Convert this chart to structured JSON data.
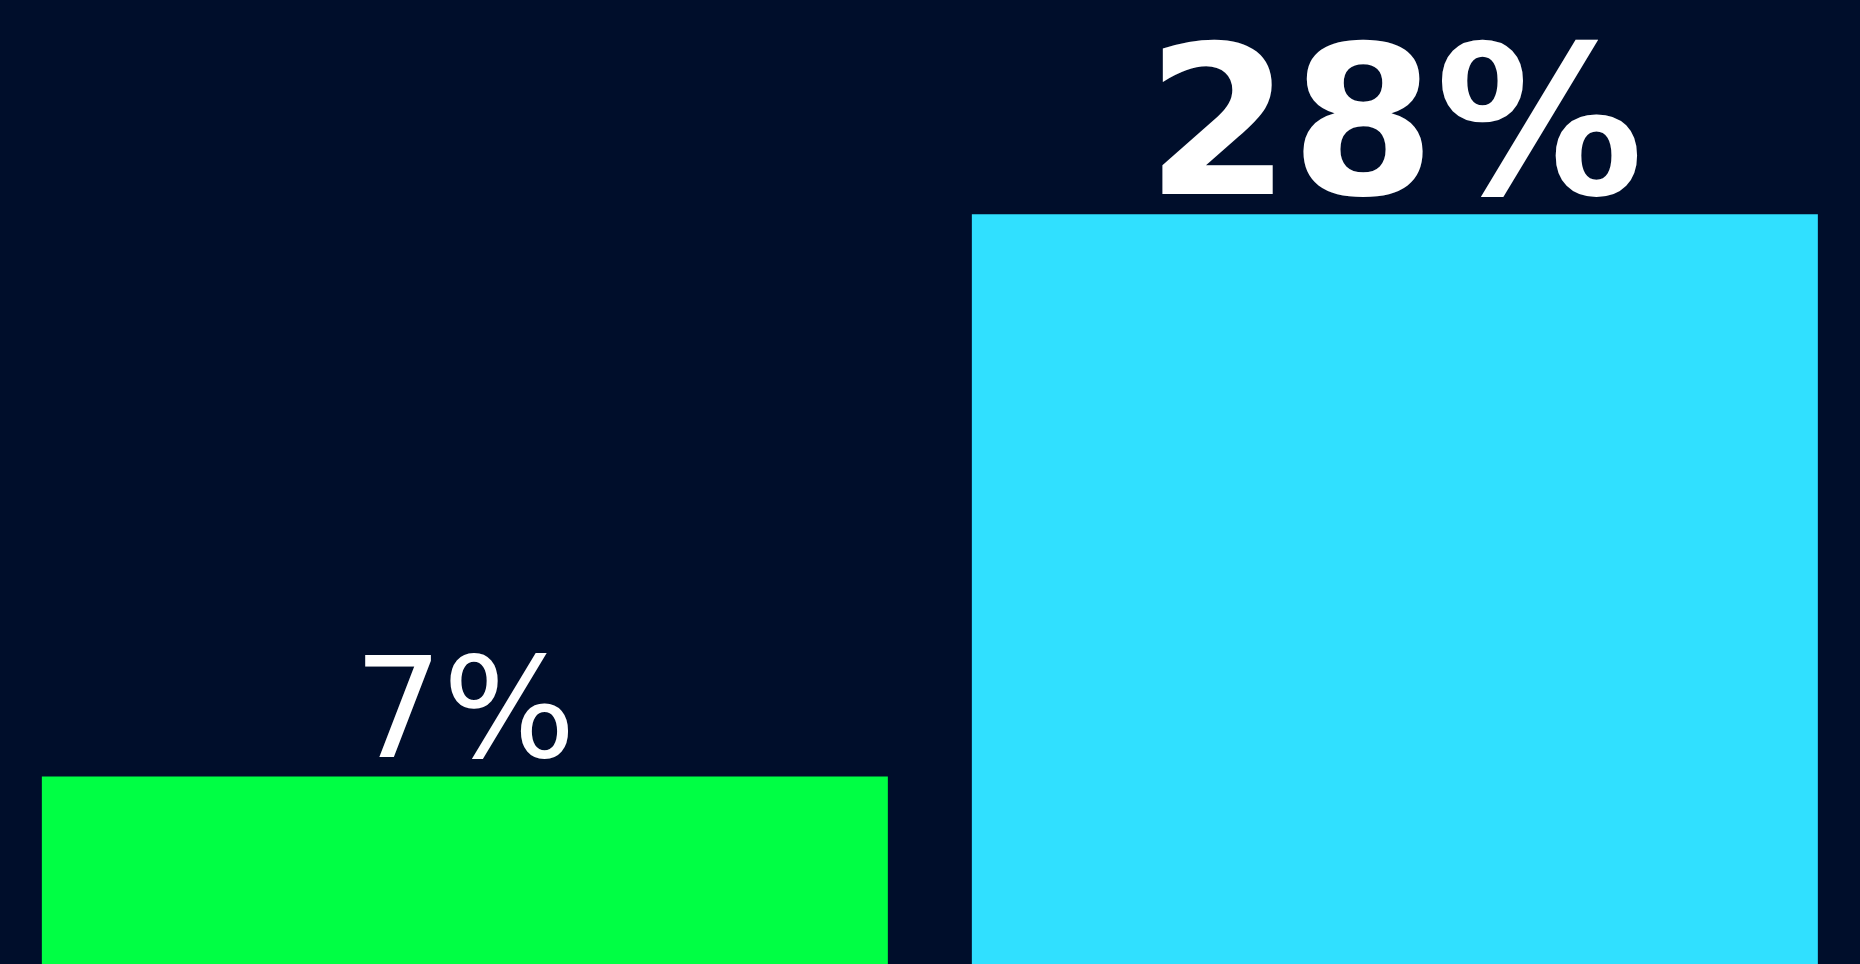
{
  "chart_data": {
    "type": "bar",
    "categories": [
      null,
      null
    ],
    "values": [
      7,
      28
    ],
    "colors": [
      "#00ff44",
      "#30e0ff"
    ],
    "ylim": [
      0,
      36
    ],
    "value_labels": [
      "7%",
      "28%"
    ]
  }
}
